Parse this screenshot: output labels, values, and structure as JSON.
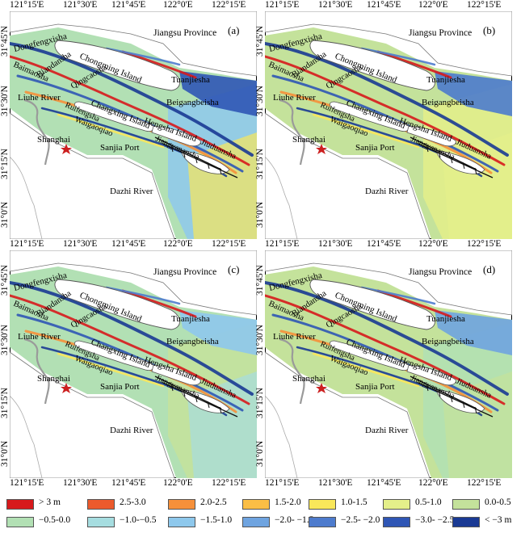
{
  "figure": {
    "panels": [
      {
        "label": "(a)"
      },
      {
        "label": "(b)"
      },
      {
        "label": "(c)"
      },
      {
        "label": "(d)"
      }
    ],
    "x_ticks": [
      "121°15'E",
      "121°30'E",
      "121°45'E",
      "122°0'E",
      "122°15'E"
    ],
    "y_ticks": [
      "31°45'N",
      "31°30'N",
      "31°15'N",
      "31°0'N"
    ],
    "place_labels": {
      "jiangsu": "Jiangsu Province",
      "chongming": "Chongming Island",
      "dongfengxisha": "Dongfengxisha",
      "baimaosha": "Baimaosha",
      "biandansha": "Biandansha",
      "liuhe": "Liuhe River",
      "qingcaosha": "Qingcaosha",
      "changxing": "Changxing Island",
      "ruifengsha": "Ruifengsha",
      "waigaoqiao": "Waigaoqiao",
      "tuanjiesha": "Tuanjiesha",
      "beigangbeisha": "Beigangbeisha",
      "hengsha": "Hengsha Island",
      "jiangyanansha": "Jiangyanansha",
      "jiuduansha": "Jiuduansha",
      "shanghai": "Shanghai",
      "sanjia": "Sanjia Port",
      "dazhi": "Dazhi River"
    },
    "legend": [
      {
        "label": "> 3 m",
        "color": "#d7191c"
      },
      {
        "label": "2.5-3.0",
        "color": "#ec5a2c"
      },
      {
        "label": "2.0-2.5",
        "color": "#f6903a"
      },
      {
        "label": "1.5-2.0",
        "color": "#fbbe45"
      },
      {
        "label": "1.0-1.5",
        "color": "#f9e75a"
      },
      {
        "label": "0.5-1.0",
        "color": "#e4ef8a"
      },
      {
        "label": "0.0-0.5",
        "color": "#c4e29b"
      },
      {
        "label": "−0.5-0.0",
        "color": "#b2e0b4"
      },
      {
        "label": "−1.0-−0.5",
        "color": "#a6dde0"
      },
      {
        "label": "−1.5-1.0",
        "color": "#8ec8ec"
      },
      {
        "label": "−2.0- −1.5",
        "color": "#6fa4e0"
      },
      {
        "label": "−2.5- −2.0",
        "color": "#4d7bcd"
      },
      {
        "label": "−3.0- −2.5",
        "color": "#2f56b5"
      },
      {
        "label": "< −3 m",
        "color": "#1a3a94"
      }
    ]
  }
}
